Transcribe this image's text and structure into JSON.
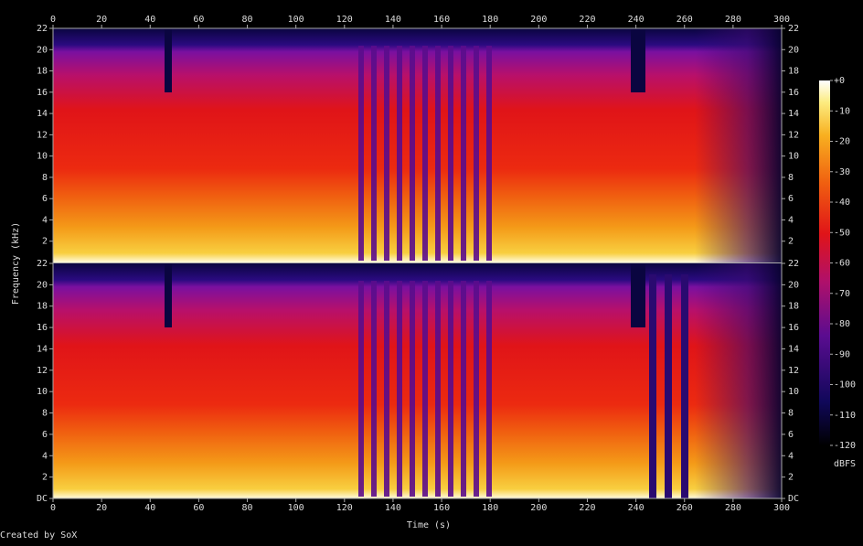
{
  "chart_data": {
    "type": "spectrogram",
    "xlabel": "Time (s)",
    "ylabel": "Frequency (kHz)",
    "xlim": [
      0,
      300
    ],
    "xticks": [
      0,
      20,
      40,
      60,
      80,
      100,
      120,
      140,
      160,
      180,
      200,
      220,
      240,
      260,
      280,
      300
    ],
    "panels": [
      {
        "ylim": [
          0,
          22
        ],
        "yticks": [
          2,
          4,
          6,
          8,
          10,
          12,
          14,
          16,
          18,
          20,
          22
        ]
      },
      {
        "ylim": [
          0,
          22
        ],
        "yticks": [
          {
            "value": 0,
            "label": "DC"
          },
          2,
          4,
          6,
          8,
          10,
          12,
          14,
          16,
          18,
          20,
          22
        ]
      }
    ],
    "colorbar": {
      "label": "dBFS",
      "lim": [
        -120,
        0
      ],
      "ticks": [
        {
          "value": 0,
          "label": "+0"
        },
        -10,
        -20,
        -30,
        -40,
        -50,
        -60,
        -70,
        -80,
        -90,
        -100,
        -110,
        -120
      ]
    },
    "credit": "Created by SoX"
  }
}
